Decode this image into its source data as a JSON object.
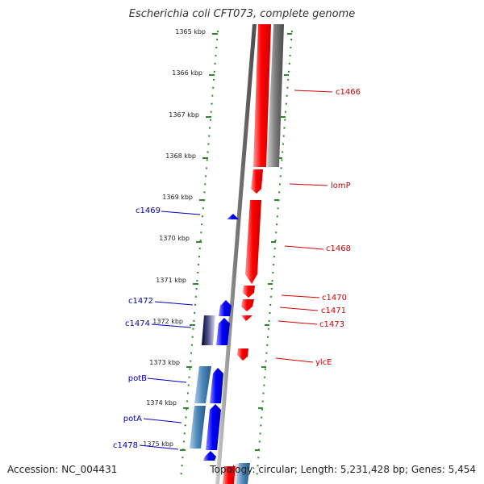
{
  "header": {
    "title": "Escherichia coli CFT073, complete genome"
  },
  "footer": {
    "accession": "Accession: NC_004431",
    "summary": "Topology: circular; Length: 5,231,428 bp; Genes: 5,454"
  },
  "colors": {
    "forward_gene": "#ff0000",
    "reverse_gene": "#0000ff",
    "forward_label": "#cc0000",
    "reverse_label": "#0000aa",
    "tick": "#2a8a2a",
    "backbone": "#808080"
  },
  "scale": {
    "unit": "kbp",
    "ticks": [
      "1365 kbp",
      "1366 kbp",
      "1367 kbp",
      "1368 kbp",
      "1369 kbp",
      "1370 kbp",
      "1371 kbp",
      "1372 kbp",
      "1373 kbp",
      "1374 kbp",
      "1375 kbp"
    ]
  },
  "forward_labels": [
    "c1466",
    "lomP",
    "c1468",
    "c1470",
    "c1471",
    "c1473",
    "ylcE"
  ],
  "reverse_labels": [
    "c1469",
    "c1472",
    "c1474",
    "potB",
    "potA",
    "c1478"
  ]
}
